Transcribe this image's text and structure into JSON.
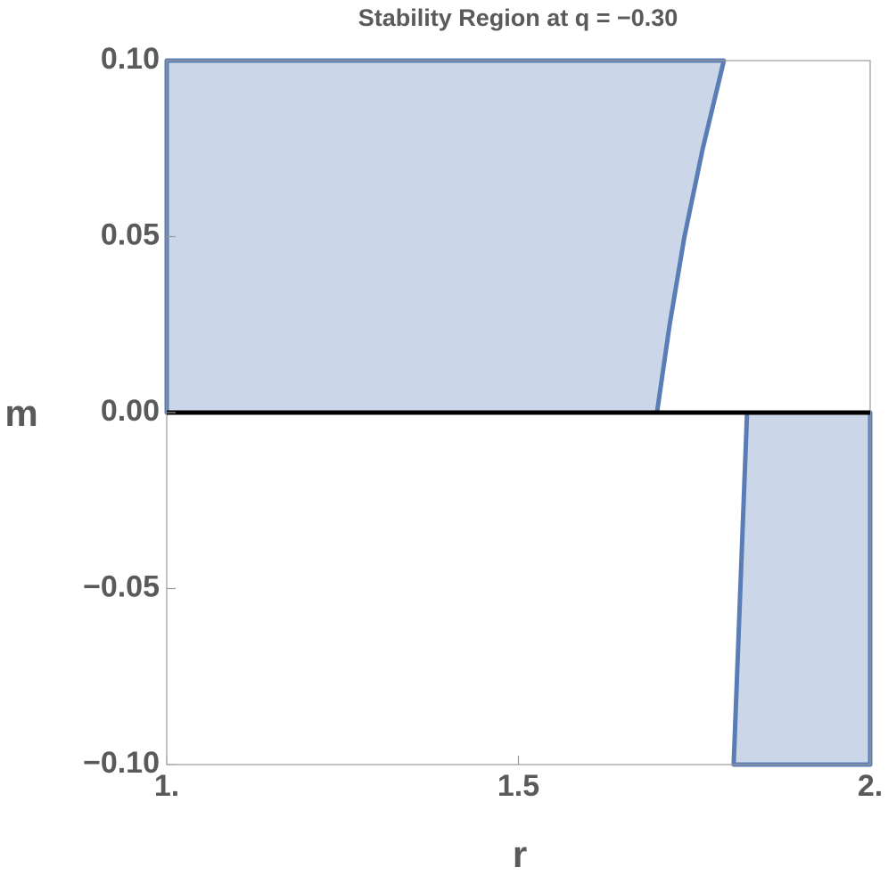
{
  "chart_data": {
    "type": "region",
    "title": "Stability Region at q = −0.30",
    "xlabel": "r",
    "ylabel": "m",
    "xlim": [
      1,
      2
    ],
    "ylim": [
      -0.1,
      0.1
    ],
    "xticks": [
      {
        "value": 1,
        "label": "1."
      },
      1.5,
      {
        "value": 2,
        "label": "2."
      }
    ],
    "yticks": [
      {
        "value": 0.1,
        "label": "0.10"
      },
      {
        "value": 0.05,
        "label": "0.05"
      },
      {
        "value": 0,
        "label": "0.00"
      },
      {
        "value": -0.05,
        "label": "−0.05"
      },
      {
        "value": -0.1,
        "label": "−0.10"
      }
    ],
    "hline": 0,
    "fill_color": "#cbd6e9",
    "edge_color": "#5a7db5",
    "regions": [
      {
        "x": [
          1,
          1.697,
          1.715,
          1.736,
          1.762,
          1.792,
          1
        ],
        "y": [
          0,
          0,
          0.025,
          0.05,
          0.075,
          0.1,
          0.1
        ]
      },
      {
        "x": [
          1.806,
          1.825,
          2,
          2
        ],
        "y": [
          -0.1,
          0,
          0,
          -0.1
        ]
      }
    ]
  }
}
